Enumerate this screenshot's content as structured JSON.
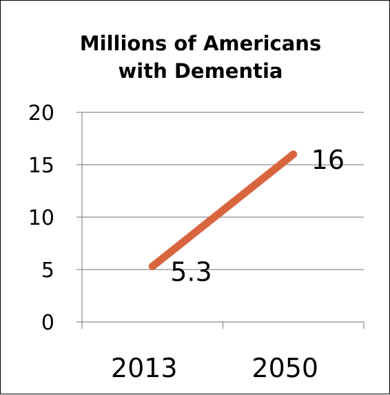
{
  "chart_data": {
    "type": "line",
    "title": [
      "Millions of Americans",
      "with Dementia"
    ],
    "categories": [
      "2013",
      "2050"
    ],
    "series": [
      {
        "values": [
          5.3,
          16
        ],
        "color": "#d9653f"
      }
    ],
    "data_labels": [
      "5.3",
      "16"
    ],
    "ylim": [
      0,
      20
    ],
    "yticks": [
      0,
      5,
      10,
      15,
      20
    ],
    "grid": true,
    "legend": "none"
  }
}
